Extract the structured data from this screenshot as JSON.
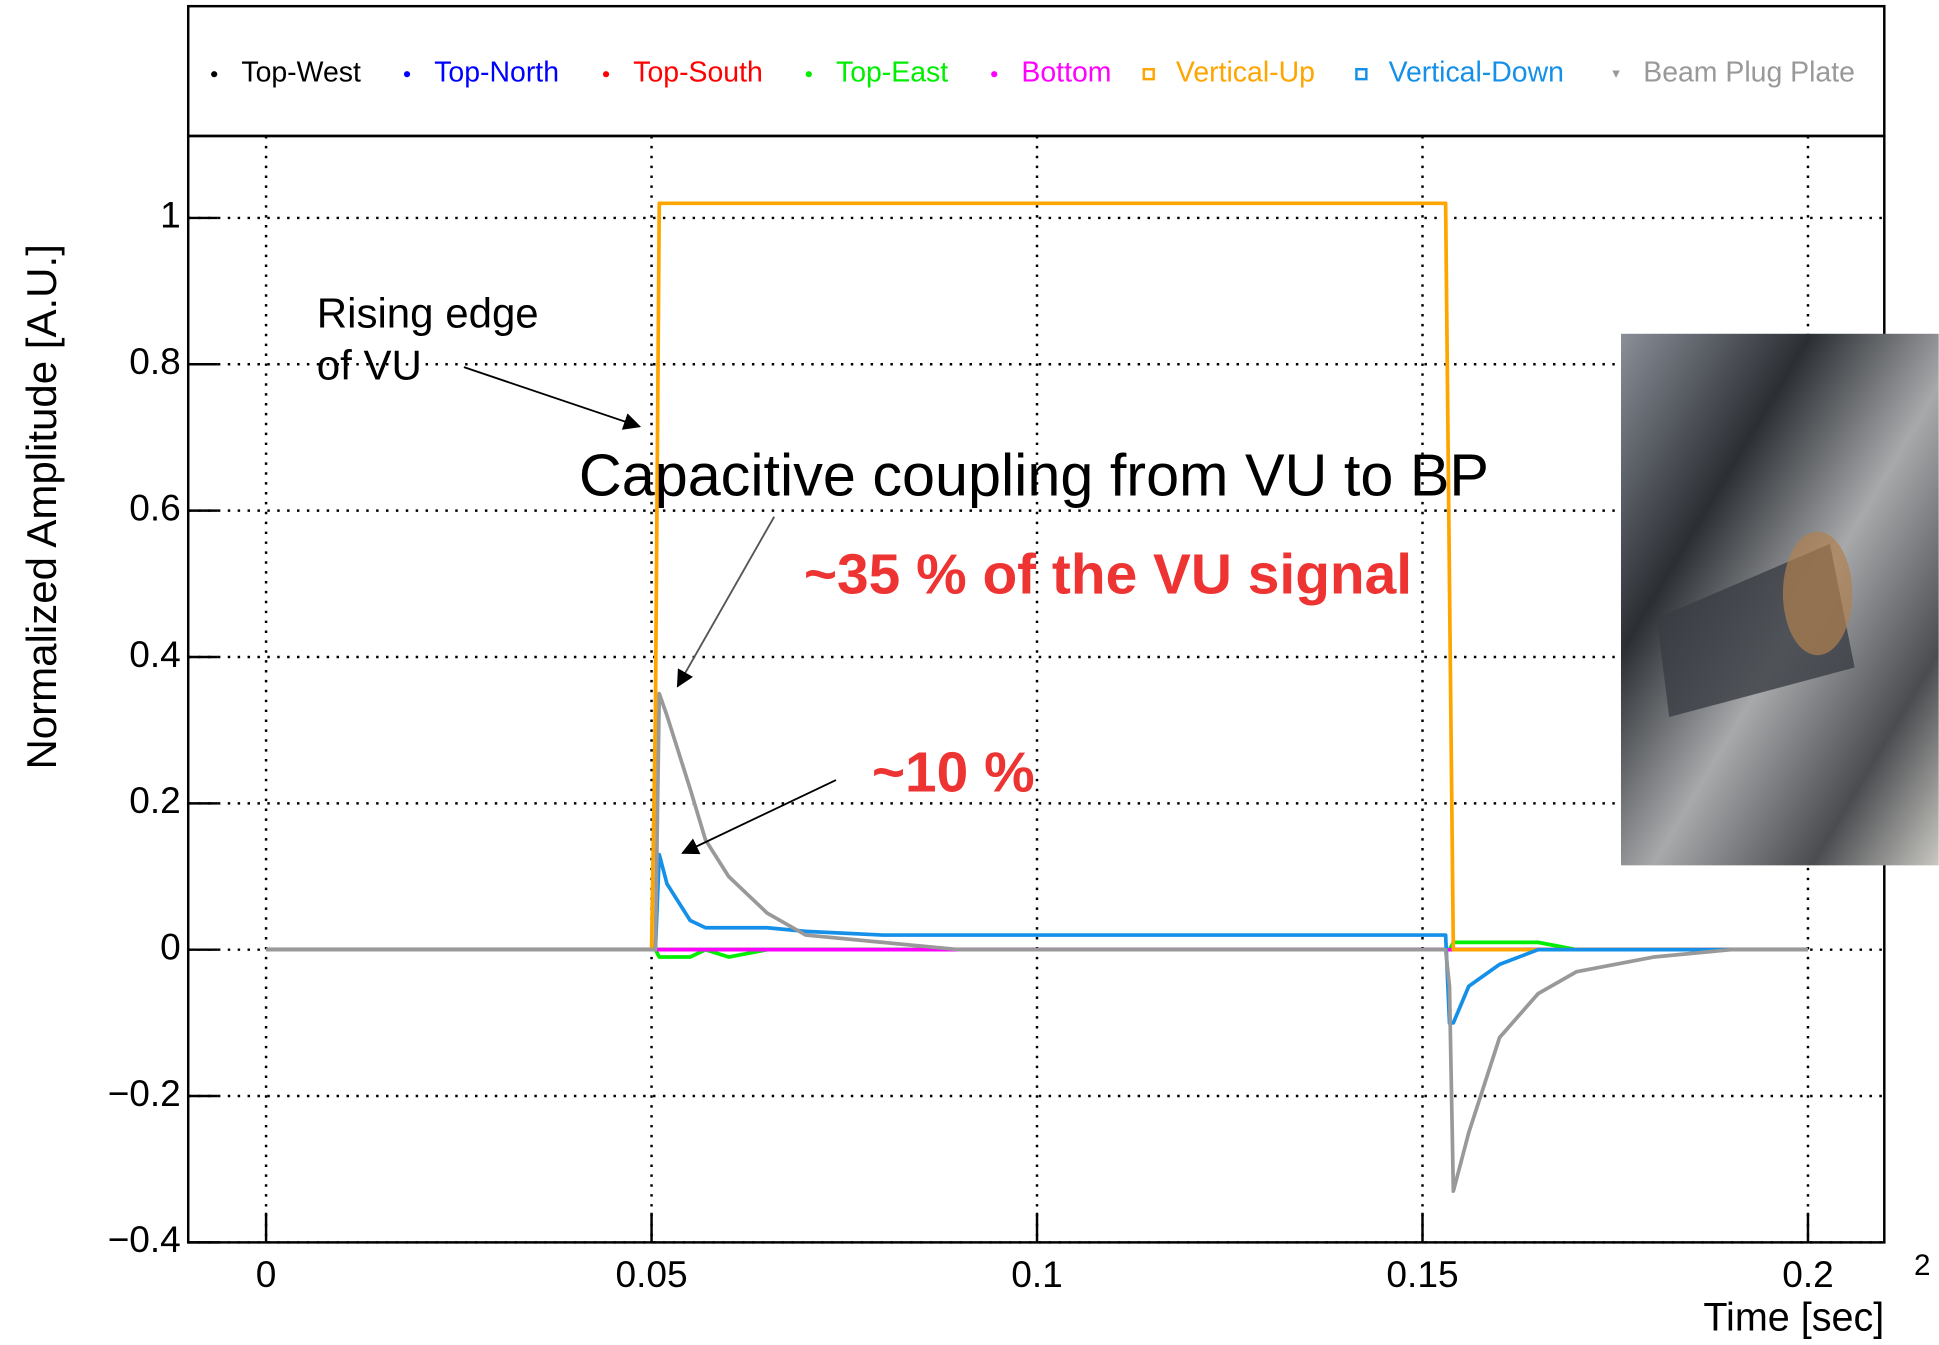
{
  "chart_data": {
    "type": "line",
    "x_label": "Time [sec]",
    "y_label": "Normalized Amplitude [A.U.]",
    "x": [
      0,
      0.01,
      0.02,
      0.03,
      0.04,
      0.05,
      0.0505,
      0.051,
      0.052,
      0.055,
      0.057,
      0.06,
      0.065,
      0.07,
      0.08,
      0.09,
      0.1,
      0.11,
      0.12,
      0.13,
      0.14,
      0.15,
      0.153,
      0.1535,
      0.154,
      0.156,
      0.16,
      0.165,
      0.17,
      0.18,
      0.19,
      0.2
    ],
    "series": [
      {
        "name": "Top-West",
        "color": "#000000",
        "marker": "dot",
        "values": [
          0,
          0,
          0,
          0,
          0,
          0,
          0,
          0,
          0,
          0,
          0,
          0,
          0,
          0,
          0,
          0,
          0,
          0,
          0,
          0,
          0,
          0,
          0,
          0,
          0,
          0,
          0,
          0,
          0,
          0,
          0,
          0
        ]
      },
      {
        "name": "Top-North",
        "color": "#0000ff",
        "marker": "dot",
        "values": [
          0,
          0,
          0,
          0,
          0,
          0,
          0,
          0,
          0,
          0,
          0,
          0,
          0,
          0,
          0,
          0,
          0,
          0,
          0,
          0,
          0,
          0,
          0,
          0,
          0,
          0,
          0,
          0,
          0,
          0,
          0,
          0
        ]
      },
      {
        "name": "Top-South",
        "color": "#ff0000",
        "marker": "dot",
        "values": [
          0,
          0,
          0,
          0,
          0,
          0,
          0,
          0,
          0,
          0,
          0,
          0,
          0,
          0,
          0,
          0,
          0,
          0,
          0,
          0,
          0,
          0,
          0,
          0,
          0,
          0,
          0,
          0,
          0,
          0,
          0,
          0
        ]
      },
      {
        "name": "Top-East",
        "color": "#00ee00",
        "marker": "dot",
        "values": [
          0,
          0,
          0,
          0,
          0,
          0,
          0,
          -0.01,
          -0.01,
          -0.01,
          0,
          -0.01,
          0,
          0,
          0,
          0,
          0,
          0,
          0,
          0,
          0,
          0,
          0,
          0,
          0.01,
          0.01,
          0.01,
          0.01,
          0,
          0,
          0,
          0
        ]
      },
      {
        "name": "Bottom",
        "color": "#ff00ff",
        "marker": "dot",
        "values": [
          0,
          0,
          0,
          0,
          0,
          0,
          0,
          0,
          0,
          0,
          0,
          0,
          0,
          0,
          0,
          0,
          0,
          0,
          0,
          0,
          0,
          0,
          0,
          0,
          0,
          0,
          0,
          0,
          0,
          0,
          0,
          0
        ]
      },
      {
        "name": "Vertical-Up",
        "color": "#ffa500",
        "marker": "square",
        "values": [
          0,
          0,
          0,
          0,
          0,
          0,
          0.32,
          1.02,
          1.02,
          1.02,
          1.02,
          1.02,
          1.02,
          1.02,
          1.02,
          1.02,
          1.02,
          1.02,
          1.02,
          1.02,
          1.02,
          1.02,
          1.02,
          0.5,
          0,
          0,
          0,
          0,
          0,
          0,
          0,
          0
        ]
      },
      {
        "name": "Vertical-Down",
        "color": "#1590e8",
        "marker": "square",
        "values": [
          0,
          0,
          0,
          0,
          0,
          0,
          0,
          0.13,
          0.09,
          0.04,
          0.03,
          0.03,
          0.03,
          0.025,
          0.02,
          0.02,
          0.02,
          0.02,
          0.02,
          0.02,
          0.02,
          0.02,
          0.02,
          -0.1,
          -0.1,
          -0.05,
          -0.02,
          0,
          0,
          0,
          0,
          0
        ]
      },
      {
        "name": "Beam Plug Plate",
        "color": "#999999",
        "marker": "triangle",
        "values": [
          0,
          0,
          0,
          0,
          0,
          0,
          0,
          0.35,
          0.32,
          0.22,
          0.15,
          0.1,
          0.05,
          0.02,
          0.01,
          0,
          0,
          0,
          0,
          0,
          0,
          0,
          0,
          -0.05,
          -0.33,
          -0.25,
          -0.12,
          -0.06,
          -0.03,
          -0.01,
          0,
          0
        ]
      }
    ],
    "xlim": [
      -0.0101,
      0.2099
    ],
    "ylim": [
      -0.4,
      1.112
    ],
    "xticks": [
      0,
      0.05,
      0.1,
      0.15,
      0.2
    ],
    "yticks": [
      {
        "value": -0.4,
        "label": "−0.4"
      },
      {
        "value": -0.2,
        "label": "−0.2"
      },
      0,
      0.2,
      0.4,
      0.6,
      0.8,
      1
    ],
    "grid": true,
    "legend": "top",
    "annotations": {
      "rising_edge": [
        "Rising edge",
        "of VU"
      ],
      "coupling": "Capacitive coupling from VU to BP",
      "vu_fraction": "~35 % of the VU signal",
      "vd_fraction": "~10 %"
    }
  },
  "page_number": "2"
}
